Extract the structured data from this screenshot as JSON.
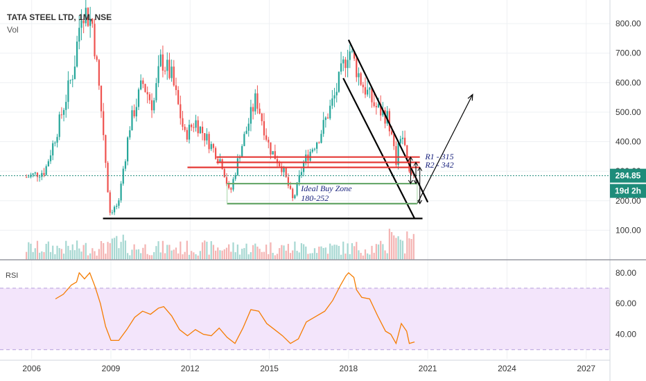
{
  "header": {
    "title": "TATA STEEL LTD, 1M, NSE",
    "volume_label": "Vol",
    "rsi_label": "RSI"
  },
  "price_badge": {
    "value": "284.85",
    "color": "#1e8c7a"
  },
  "countdown_badge": {
    "value": "19d 2h",
    "color": "#1e8c7a"
  },
  "colors": {
    "up": "#26a69a",
    "down": "#ef5350",
    "rsi_line": "#f57c00",
    "rsi_band": "#f3e5fb",
    "support_red": "#e53935",
    "buy_zone": "#2e7d32",
    "annotation_text": "#1a237e"
  },
  "chart_data": [
    {
      "type": "candlestick",
      "title": "TATA STEEL LTD, 1M, NSE",
      "y_axis": {
        "range": [
          0,
          880
        ],
        "ticks": [
          "100.00",
          "200.00",
          "300.00",
          "400.00",
          "500.00",
          "600.00",
          "700.00",
          "800.00"
        ]
      },
      "x_axis": {
        "range": [
          2004.8,
          2027.9
        ],
        "ticks": [
          "2006",
          "2009",
          "2012",
          "2015",
          "2018",
          "2021",
          "2024",
          "2027"
        ]
      },
      "last_price": 284.85,
      "key_points": [
        {
          "date": "2005.8",
          "close": 280
        },
        {
          "date": "2006.5",
          "close": 300
        },
        {
          "date": "2007.0",
          "close": 450
        },
        {
          "date": "2007.6",
          "close": 650
        },
        {
          "date": "2007.9",
          "close": 860
        },
        {
          "date": "2008.3",
          "close": 800
        },
        {
          "date": "2008.7",
          "close": 450
        },
        {
          "date": "2008.95",
          "close": 160
        },
        {
          "date": "2009.3",
          "close": 190
        },
        {
          "date": "2009.7",
          "close": 450
        },
        {
          "date": "2010.2",
          "close": 600
        },
        {
          "date": "2010.6",
          "close": 520
        },
        {
          "date": "2010.9",
          "close": 680
        },
        {
          "date": "2011.3",
          "close": 620
        },
        {
          "date": "2011.8",
          "close": 420
        },
        {
          "date": "2012.2",
          "close": 470
        },
        {
          "date": "2012.7",
          "close": 400
        },
        {
          "date": "2013.2",
          "close": 330
        },
        {
          "date": "2013.5",
          "close": 220
        },
        {
          "date": "2013.9",
          "close": 370
        },
        {
          "date": "2014.5",
          "close": 550
        },
        {
          "date": "2015.0",
          "close": 380
        },
        {
          "date": "2015.5",
          "close": 310
        },
        {
          "date": "2015.9",
          "close": 200
        },
        {
          "date": "2016.3",
          "close": 330
        },
        {
          "date": "2016.9",
          "close": 420
        },
        {
          "date": "2017.5",
          "close": 560
        },
        {
          "date": "2018.0",
          "close": 720
        },
        {
          "date": "2018.5",
          "close": 600
        },
        {
          "date": "2019.0",
          "close": 520
        },
        {
          "date": "2019.5",
          "close": 480
        },
        {
          "date": "2019.8",
          "close": 330
        },
        {
          "date": "2020.0",
          "close": 440
        },
        {
          "date": "2020.3",
          "close": 290
        },
        {
          "date": "2020.5",
          "close": 284.85
        }
      ],
      "lines": [
        {
          "name": "support-base",
          "color": "black",
          "points": [
            [
              2008.7,
              140
            ],
            [
              2020.8,
              140
            ]
          ]
        },
        {
          "name": "channel-upper",
          "color": "black",
          "points": [
            [
              2018.0,
              745
            ],
            [
              2021.0,
              195
            ]
          ]
        },
        {
          "name": "channel-lower",
          "color": "black",
          "points": [
            [
              2017.8,
              615
            ],
            [
              2020.5,
              140
            ]
          ]
        },
        {
          "name": "red-level-a",
          "color": "red",
          "points": [
            [
              2013.0,
              348
            ],
            [
              2020.7,
              348
            ]
          ]
        },
        {
          "name": "red-level-b",
          "color": "red",
          "points": [
            [
              2013.0,
              330
            ],
            [
              2020.7,
              330
            ]
          ]
        },
        {
          "name": "red-level-c",
          "color": "red",
          "points": [
            [
              2011.9,
              313
            ],
            [
              2020.7,
              313
            ]
          ]
        },
        {
          "name": "green-level-top",
          "color": "green",
          "points": [
            [
              2013.4,
              258
            ],
            [
              2020.6,
              258
            ]
          ]
        },
        {
          "name": "green-level-bottom",
          "color": "green",
          "points": [
            [
              2013.4,
              190
            ],
            [
              2020.6,
              190
            ]
          ]
        },
        {
          "name": "projection-arrow",
          "color": "black",
          "points": [
            [
              2020.6,
              190
            ],
            [
              2022.7,
              560
            ]
          ]
        }
      ],
      "annotations": [
        {
          "text": "R1 - 315",
          "date": 2020.9,
          "price": 340
        },
        {
          "text": "R2 - 342",
          "date": 2020.9,
          "price": 312
        },
        {
          "text": "Ideal Buy Zone",
          "date": 2016.2,
          "price": 232
        },
        {
          "text": "180-252",
          "date": 2016.2,
          "price": 200
        }
      ]
    },
    {
      "type": "line",
      "title": "RSI",
      "y_axis": {
        "range": [
          24,
          88
        ],
        "ticks": [
          "40.00",
          "60.00",
          "80.00"
        ]
      },
      "band": [
        30,
        70
      ],
      "series": [
        {
          "points": [
            [
              2006.9,
              63
            ],
            [
              2007.2,
              66
            ],
            [
              2007.5,
              72
            ],
            [
              2007.7,
              74
            ],
            [
              2007.8,
              80
            ],
            [
              2008.0,
              76
            ],
            [
              2008.2,
              80
            ],
            [
              2008.4,
              71
            ],
            [
              2008.6,
              60
            ],
            [
              2008.8,
              45
            ],
            [
              2009.0,
              36
            ],
            [
              2009.3,
              36
            ],
            [
              2009.6,
              43
            ],
            [
              2009.9,
              51
            ],
            [
              2010.2,
              55
            ],
            [
              2010.5,
              53
            ],
            [
              2010.8,
              57
            ],
            [
              2011.0,
              58
            ],
            [
              2011.3,
              52
            ],
            [
              2011.6,
              43
            ],
            [
              2011.9,
              39
            ],
            [
              2012.2,
              43
            ],
            [
              2012.5,
              40
            ],
            [
              2012.8,
              39
            ],
            [
              2013.1,
              44
            ],
            [
              2013.4,
              38
            ],
            [
              2013.7,
              34
            ],
            [
              2014.0,
              44
            ],
            [
              2014.3,
              56
            ],
            [
              2014.6,
              55
            ],
            [
              2014.9,
              47
            ],
            [
              2015.2,
              43
            ],
            [
              2015.5,
              39
            ],
            [
              2015.8,
              34
            ],
            [
              2016.1,
              37
            ],
            [
              2016.4,
              48
            ],
            [
              2016.8,
              52
            ],
            [
              2017.1,
              55
            ],
            [
              2017.4,
              62
            ],
            [
              2017.7,
              72
            ],
            [
              2017.9,
              78
            ],
            [
              2018.0,
              80
            ],
            [
              2018.2,
              77
            ],
            [
              2018.3,
              69
            ],
            [
              2018.5,
              64
            ],
            [
              2018.8,
              63
            ],
            [
              2019.1,
              52
            ],
            [
              2019.4,
              42
            ],
            [
              2019.6,
              40
            ],
            [
              2019.8,
              34
            ],
            [
              2020.0,
              47
            ],
            [
              2020.2,
              42
            ],
            [
              2020.3,
              34
            ],
            [
              2020.5,
              35
            ]
          ]
        }
      ]
    }
  ]
}
